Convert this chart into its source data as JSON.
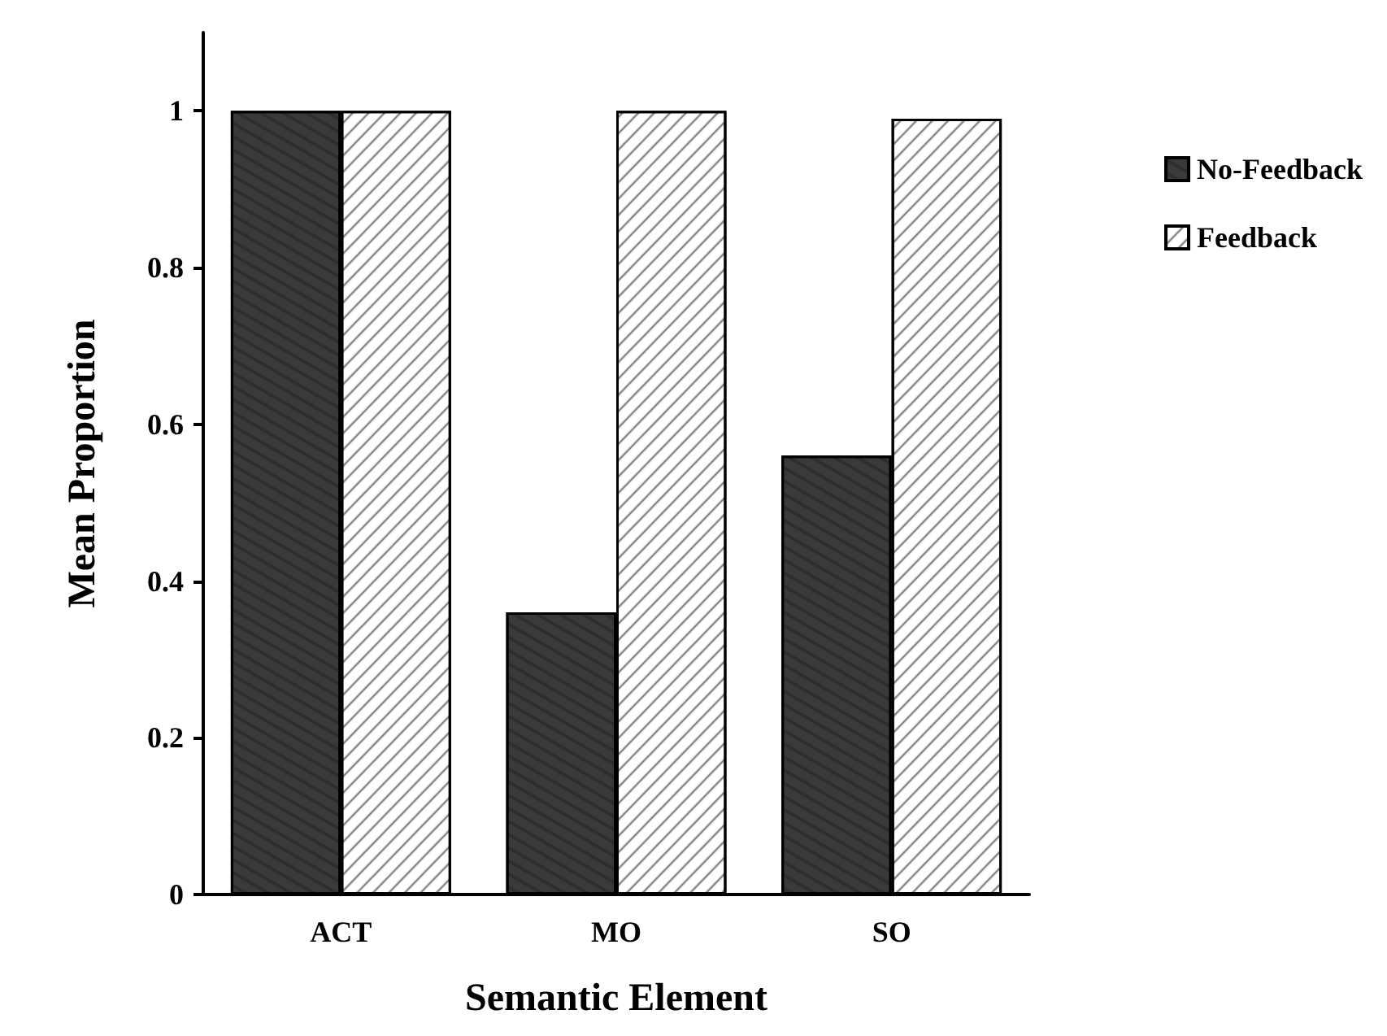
{
  "chart_data": {
    "type": "bar",
    "xlabel": "Semantic Element",
    "ylabel": "Mean Proportion",
    "categories": [
      "ACT",
      "MO",
      "SO"
    ],
    "series": [
      {
        "name": "No-Feedback",
        "color": "#3a3a3a",
        "values": [
          1.0,
          0.36,
          0.56
        ]
      },
      {
        "name": "Feedback",
        "color": "#ffffff",
        "values": [
          1.0,
          1.0,
          0.99
        ]
      }
    ],
    "ylim": [
      0,
      1.1
    ],
    "yticks": [
      0,
      0.2,
      0.4,
      0.6,
      0.8,
      1
    ],
    "grid": false,
    "legend": "right"
  }
}
